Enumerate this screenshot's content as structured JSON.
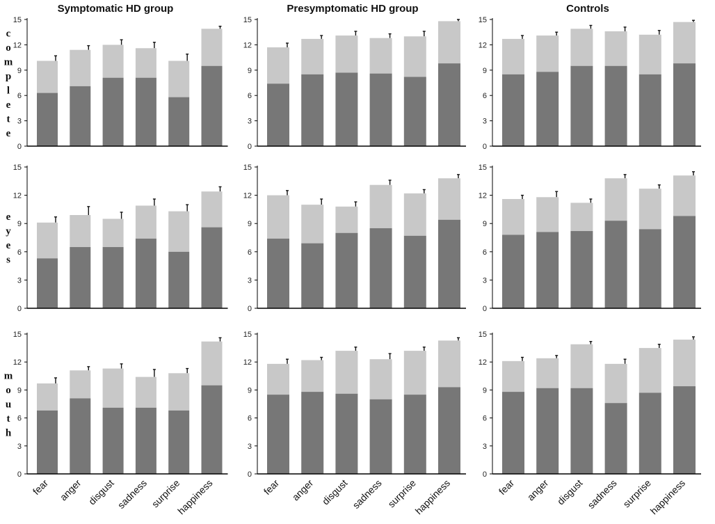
{
  "figure": {
    "columns": [
      "Symptomatic HD group",
      "Presymptomatic HD group",
      "Controls"
    ],
    "rows": [
      "complete",
      "eyes",
      "mouth"
    ],
    "colors": {
      "dark": "#777777",
      "light": "#c8c8c8",
      "axis": "#000000"
    }
  },
  "chart_data": [
    {
      "type": "bar",
      "stacked": true,
      "title": "Symptomatic HD group",
      "row_label": "complete",
      "categories": [
        "fear",
        "anger",
        "disgust",
        "sadness",
        "surprise",
        "happiness"
      ],
      "ylim": [
        0,
        15
      ],
      "yticks": [
        0,
        3,
        6,
        9,
        12,
        15
      ],
      "show_categories": false,
      "series": [
        {
          "name": "dark",
          "values": [
            6.3,
            7.1,
            8.1,
            8.1,
            5.8,
            9.5
          ]
        },
        {
          "name": "total",
          "values": [
            10.1,
            11.4,
            12.0,
            11.6,
            10.1,
            13.9
          ]
        }
      ],
      "errors": [
        0.6,
        0.5,
        0.6,
        0.7,
        0.8,
        0.3
      ]
    },
    {
      "type": "bar",
      "stacked": true,
      "title": "Presymptomatic HD group",
      "row_label": "complete",
      "categories": [
        "fear",
        "anger",
        "disgust",
        "sadness",
        "surprise",
        "happiness"
      ],
      "ylim": [
        0,
        15
      ],
      "yticks": [
        0,
        3,
        6,
        9,
        12,
        15
      ],
      "show_categories": false,
      "series": [
        {
          "name": "dark",
          "values": [
            7.4,
            8.5,
            8.7,
            8.6,
            8.2,
            9.8
          ]
        },
        {
          "name": "total",
          "values": [
            11.7,
            12.7,
            13.1,
            12.8,
            13.0,
            14.8
          ]
        }
      ],
      "errors": [
        0.5,
        0.4,
        0.5,
        0.5,
        0.6,
        0.2
      ]
    },
    {
      "type": "bar",
      "stacked": true,
      "title": "Controls",
      "row_label": "complete",
      "categories": [
        "fear",
        "anger",
        "disgust",
        "sadness",
        "surprise",
        "happiness"
      ],
      "ylim": [
        0,
        15
      ],
      "yticks": [
        0,
        3,
        6,
        9,
        12,
        15
      ],
      "show_categories": false,
      "series": [
        {
          "name": "dark",
          "values": [
            8.5,
            8.8,
            9.5,
            9.5,
            8.5,
            9.8
          ]
        },
        {
          "name": "total",
          "values": [
            12.7,
            13.1,
            13.9,
            13.6,
            13.2,
            14.7
          ]
        }
      ],
      "errors": [
        0.4,
        0.4,
        0.4,
        0.5,
        0.5,
        0.2
      ]
    },
    {
      "type": "bar",
      "stacked": true,
      "title": "Symptomatic HD group",
      "row_label": "eyes",
      "categories": [
        "fear",
        "anger",
        "disgust",
        "sadness",
        "surprise",
        "happiness"
      ],
      "ylim": [
        0,
        15
      ],
      "yticks": [
        0,
        3,
        6,
        9,
        12,
        15
      ],
      "show_categories": false,
      "series": [
        {
          "name": "dark",
          "values": [
            5.3,
            6.5,
            6.5,
            7.4,
            6.0,
            8.6
          ]
        },
        {
          "name": "total",
          "values": [
            9.1,
            9.9,
            9.5,
            10.9,
            10.3,
            12.4
          ]
        }
      ],
      "errors": [
        0.6,
        0.9,
        0.7,
        0.7,
        0.7,
        0.5
      ]
    },
    {
      "type": "bar",
      "stacked": true,
      "title": "Presymptomatic HD group",
      "row_label": "eyes",
      "categories": [
        "fear",
        "anger",
        "disgust",
        "sadness",
        "surprise",
        "happiness"
      ],
      "ylim": [
        0,
        15
      ],
      "yticks": [
        0,
        3,
        6,
        9,
        12,
        15
      ],
      "show_categories": false,
      "series": [
        {
          "name": "dark",
          "values": [
            7.4,
            6.9,
            8.0,
            8.5,
            7.7,
            9.4
          ]
        },
        {
          "name": "total",
          "values": [
            12.0,
            11.0,
            10.8,
            13.1,
            12.2,
            13.8
          ]
        }
      ],
      "errors": [
        0.5,
        0.6,
        0.5,
        0.5,
        0.4,
        0.4
      ]
    },
    {
      "type": "bar",
      "stacked": true,
      "title": "Controls",
      "row_label": "eyes",
      "categories": [
        "fear",
        "anger",
        "disgust",
        "sadness",
        "surprise",
        "happiness"
      ],
      "ylim": [
        0,
        15
      ],
      "yticks": [
        0,
        3,
        6,
        9,
        12,
        15
      ],
      "show_categories": false,
      "series": [
        {
          "name": "dark",
          "values": [
            7.8,
            8.1,
            8.2,
            9.3,
            8.4,
            9.8
          ]
        },
        {
          "name": "total",
          "values": [
            11.6,
            11.8,
            11.2,
            13.8,
            12.7,
            14.1
          ]
        }
      ],
      "errors": [
        0.4,
        0.6,
        0.4,
        0.4,
        0.4,
        0.4
      ]
    },
    {
      "type": "bar",
      "stacked": true,
      "title": "Symptomatic HD group",
      "row_label": "mouth",
      "categories": [
        "fear",
        "anger",
        "disgust",
        "sadness",
        "surprise",
        "happiness"
      ],
      "ylim": [
        0,
        15
      ],
      "yticks": [
        0,
        3,
        6,
        9,
        12,
        15
      ],
      "show_categories": true,
      "series": [
        {
          "name": "dark",
          "values": [
            6.8,
            8.1,
            7.1,
            7.1,
            6.8,
            9.5
          ]
        },
        {
          "name": "total",
          "values": [
            9.7,
            11.1,
            11.3,
            10.4,
            10.8,
            14.2
          ]
        }
      ],
      "errors": [
        0.6,
        0.4,
        0.5,
        0.8,
        0.5,
        0.4
      ]
    },
    {
      "type": "bar",
      "stacked": true,
      "title": "Presymptomatic HD group",
      "row_label": "mouth",
      "categories": [
        "fear",
        "anger",
        "disgust",
        "sadness",
        "surprise",
        "happiness"
      ],
      "ylim": [
        0,
        15
      ],
      "yticks": [
        0,
        3,
        6,
        9,
        12,
        15
      ],
      "show_categories": true,
      "series": [
        {
          "name": "dark",
          "values": [
            8.5,
            8.8,
            8.6,
            8.0,
            8.5,
            9.3
          ]
        },
        {
          "name": "total",
          "values": [
            11.8,
            12.2,
            13.2,
            12.3,
            13.2,
            14.3
          ]
        }
      ],
      "errors": [
        0.5,
        0.3,
        0.4,
        0.6,
        0.4,
        0.3
      ]
    },
    {
      "type": "bar",
      "stacked": true,
      "title": "Controls",
      "row_label": "mouth",
      "categories": [
        "fear",
        "anger",
        "disgust",
        "sadness",
        "surprise",
        "happiness"
      ],
      "ylim": [
        0,
        15
      ],
      "yticks": [
        0,
        3,
        6,
        9,
        12,
        15
      ],
      "show_categories": true,
      "series": [
        {
          "name": "dark",
          "values": [
            8.8,
            9.2,
            9.2,
            7.6,
            8.7,
            9.4
          ]
        },
        {
          "name": "total",
          "values": [
            12.1,
            12.4,
            13.9,
            11.8,
            13.5,
            14.4
          ]
        }
      ],
      "errors": [
        0.4,
        0.3,
        0.3,
        0.5,
        0.4,
        0.3
      ]
    }
  ]
}
